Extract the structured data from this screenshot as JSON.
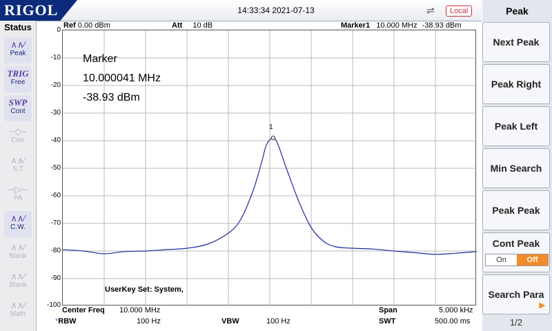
{
  "brand": "RIGOL",
  "datetime": "14:33:34 2021-07-13",
  "local_label": "Local",
  "status": {
    "title": "Status",
    "items": [
      {
        "icon": "peak-icon",
        "glyph": "∧∧∕",
        "label": "Peak",
        "active": true
      },
      {
        "icon": "trig-icon",
        "glyph": "TRIG",
        "label": "Free",
        "active": true
      },
      {
        "icon": "swp-icon",
        "glyph": "SWP",
        "label": "Cont",
        "active": true
      },
      {
        "icon": "corr-icon",
        "glyph": "~◇~",
        "label": "Corr",
        "active": false
      },
      {
        "icon": "st-icon",
        "glyph": "∧∧∕",
        "label": "S.T",
        "active": false
      },
      {
        "icon": "pa-icon",
        "glyph": "─▷─",
        "label": "PA",
        "active": false
      },
      {
        "icon": "cw-icon",
        "glyph": "∧∧∕",
        "label": "C.W.",
        "active": true
      },
      {
        "icon": "blank-icon",
        "glyph": "∧∧∕",
        "label": "Blank",
        "active": false
      },
      {
        "icon": "blank-icon",
        "glyph": "∧∧∕",
        "label": "Blank",
        "active": false
      },
      {
        "icon": "math-icon",
        "glyph": "∧∧∕",
        "label": "Math",
        "active": false
      }
    ]
  },
  "header": {
    "ref_label": "Ref",
    "ref_value": "0.00 dBm",
    "att_label": "Att",
    "att_value": "10 dB",
    "marker_label": "Marker1",
    "marker_freq": "10.000 MHz",
    "marker_level": "-38.93 dBm"
  },
  "marker_readout": {
    "title": "Marker",
    "freq": "10.000041 MHz",
    "level": "-38.93 dBm",
    "index": "1"
  },
  "userkey": "UserKey Set:    System,",
  "footer": {
    "center_label": "Center Freq",
    "center_value": "10.000 MHz",
    "span_label": "Span",
    "span_value": "5.000 kHz",
    "rbw_star": "*",
    "rbw_label": "RBW",
    "rbw_value": "100 Hz",
    "vbw_label": "VBW",
    "vbw_value": "100 Hz",
    "swt_label": "SWT",
    "swt_value": "500.00 ms"
  },
  "softkeys": {
    "title": "Peak",
    "buttons": [
      "Next Peak",
      "Peak Right",
      "Peak Left",
      "Min Search",
      "Peak Peak",
      "Cont Peak",
      "Search Para"
    ],
    "cont_peak_on": "On",
    "cont_peak_off": "Off",
    "page": "1/2"
  },
  "chart_data": {
    "type": "line",
    "ylim": [
      -100,
      0
    ],
    "y_ticks": [
      "0",
      "-10",
      "-20",
      "-30",
      "-40",
      "-50",
      "-60",
      "-70",
      "-80",
      "-90",
      "-100"
    ],
    "x_range_hz": [
      9997500,
      10002500
    ],
    "grid": true,
    "series": [
      {
        "color": "#1b2a9a",
        "x": [
          9997500,
          9997750,
          9998000,
          9998250,
          9998500,
          9998750,
          9999000,
          9999250,
          9999500,
          9999650,
          9999800,
          9999900,
          9999960,
          10000041,
          10000100,
          10000200,
          10000350,
          10000500,
          10000650,
          10000800,
          10001000,
          10001250,
          10001500,
          10001750,
          10002000,
          10002250,
          10002500
        ],
        "y": [
          -79.5,
          -80,
          -81,
          -80.2,
          -80,
          -79.5,
          -79,
          -77.5,
          -73.5,
          -68.5,
          -58,
          -48,
          -41.5,
          -38.93,
          -41.5,
          -50,
          -62,
          -71.5,
          -76.5,
          -78.5,
          -79,
          -79.3,
          -80,
          -80.6,
          -81.2,
          -80.8,
          -80.2
        ]
      }
    ]
  }
}
